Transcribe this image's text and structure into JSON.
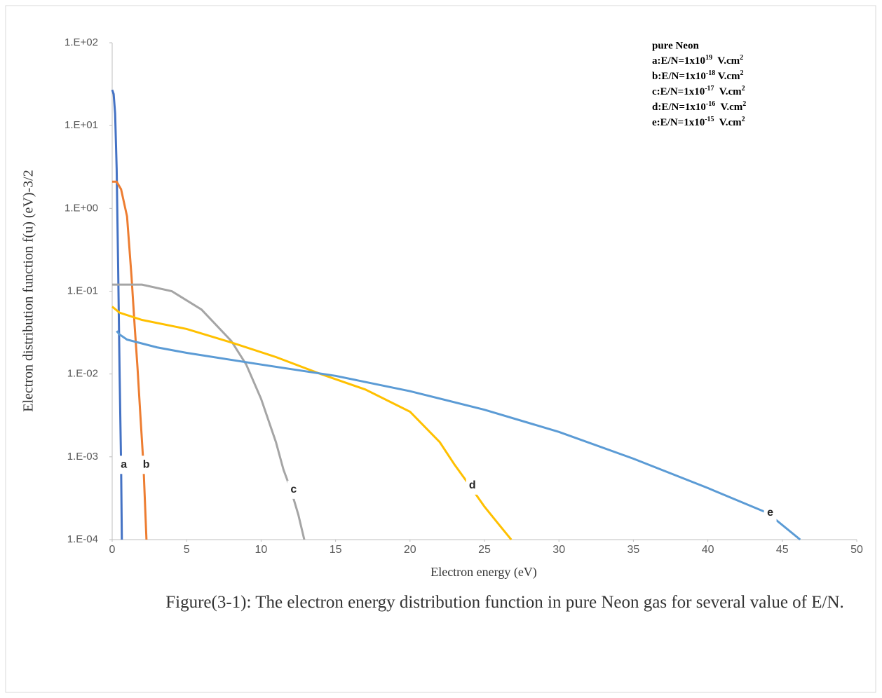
{
  "chart_data": {
    "type": "line",
    "y_label": "Electron distribution function f(u) (eV)-3/2",
    "x_label": "Electron energy (eV)",
    "caption": "Figure(3-1): The electron energy distribution function in pure Neon  gas for several value of  E/N.",
    "annotation": {
      "title": "pure Neon",
      "lines": [
        [
          {
            "text": "a:E/N=1x10"
          },
          {
            "sup": "19"
          },
          {
            "text": "  V.cm"
          },
          {
            "sup": "2"
          }
        ],
        [
          {
            "text": "b:E/N=1x10"
          },
          {
            "sup": "-18"
          },
          {
            "text": " V.cm"
          },
          {
            "sup": "2"
          }
        ],
        [
          {
            "text": "c:E/N=1x10"
          },
          {
            "sup": "-17"
          },
          {
            "text": "  V.cm"
          },
          {
            "sup": "2"
          }
        ],
        [
          {
            "text": "d:E/N=1x10"
          },
          {
            "sup": "-16"
          },
          {
            "text": "  V.cm"
          },
          {
            "sup": "2"
          }
        ],
        [
          {
            "text": "e:E/N=1x10"
          },
          {
            "sup": "-15"
          },
          {
            "text": "  V.cm"
          },
          {
            "sup": "2"
          }
        ]
      ]
    },
    "log_y": true,
    "xlim": [
      0,
      50
    ],
    "xticks": [
      0,
      5,
      10,
      15,
      20,
      25,
      30,
      35,
      40,
      45,
      50
    ],
    "ylim": [
      0.0001,
      100
    ],
    "yticks": [
      {
        "value": 0.0001,
        "label": "1.E-04"
      },
      {
        "value": 0.001,
        "label": "1.E-03"
      },
      {
        "value": 0.01,
        "label": "1.E-02"
      },
      {
        "value": 0.1,
        "label": "1.E-01"
      },
      {
        "value": 1,
        "label": "1.E+00"
      },
      {
        "value": 10,
        "label": "1.E+01"
      },
      {
        "value": 100,
        "label": "1.E+02"
      }
    ],
    "series": [
      {
        "name": "a",
        "color": "#4472c4",
        "x": [
          0,
          0.1,
          0.2,
          0.3,
          0.4,
          0.5,
          0.6,
          0.65
        ],
        "values": [
          27,
          24,
          14,
          3,
          0.2,
          0.01,
          0.0008,
          0.0001
        ]
      },
      {
        "name": "b",
        "color": "#ed7d31",
        "x": [
          0,
          0.3,
          0.6,
          1.0,
          1.3,
          1.5,
          1.7,
          1.9,
          2.1,
          2.3
        ],
        "values": [
          2.1,
          2.1,
          1.7,
          0.8,
          0.15,
          0.04,
          0.012,
          0.003,
          0.0008,
          0.0001
        ]
      },
      {
        "name": "c",
        "color": "#a5a5a5",
        "x": [
          0,
          2,
          4,
          6,
          8,
          9,
          10,
          11,
          11.5,
          12,
          12.5,
          12.9
        ],
        "values": [
          0.12,
          0.12,
          0.1,
          0.06,
          0.025,
          0.013,
          0.005,
          0.0015,
          0.0007,
          0.0004,
          0.0002,
          0.0001
        ]
      },
      {
        "name": "d",
        "color": "#ffc000",
        "x": [
          0,
          0.5,
          2,
          5,
          8,
          11,
          14,
          17,
          20,
          22,
          23,
          24,
          25,
          26,
          26.8
        ],
        "values": [
          0.065,
          0.055,
          0.045,
          0.035,
          0.024,
          0.016,
          0.01,
          0.0065,
          0.0035,
          0.0015,
          0.0008,
          0.00045,
          0.00025,
          0.00015,
          0.0001
        ]
      },
      {
        "name": "e",
        "color": "#5b9bd5",
        "x": [
          0.3,
          0.5,
          1,
          3,
          5,
          10,
          15,
          20,
          25,
          30,
          35,
          40,
          44,
          46.2
        ],
        "values": [
          0.033,
          0.03,
          0.026,
          0.021,
          0.018,
          0.013,
          0.0095,
          0.0062,
          0.0037,
          0.002,
          0.00095,
          0.00042,
          0.00021,
          0.0001
        ]
      }
    ]
  }
}
